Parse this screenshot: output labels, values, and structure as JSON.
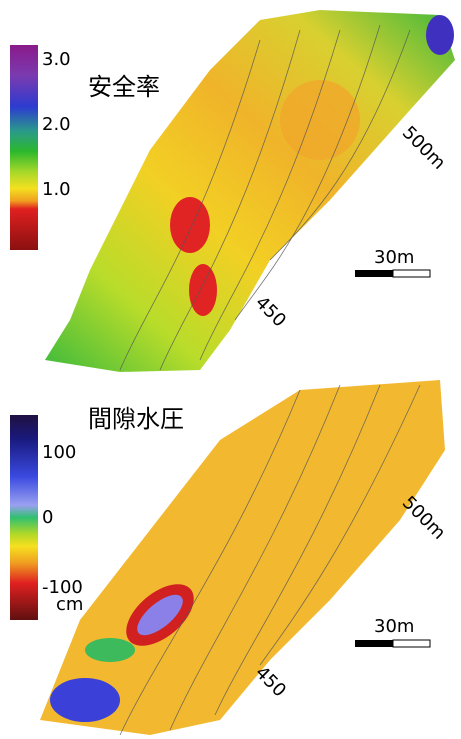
{
  "panels": [
    {
      "title": "安全率",
      "scale_labels": [
        "3.0",
        "2.0",
        "1.0"
      ],
      "contour_labels": [
        "500m",
        "450"
      ],
      "scale_bar": "30m"
    },
    {
      "title": "間隙水圧",
      "scale_labels": [
        "100",
        "0",
        "-100",
        "cm"
      ],
      "contour_labels": [
        "500m",
        "450"
      ],
      "scale_bar": "30m"
    }
  ]
}
